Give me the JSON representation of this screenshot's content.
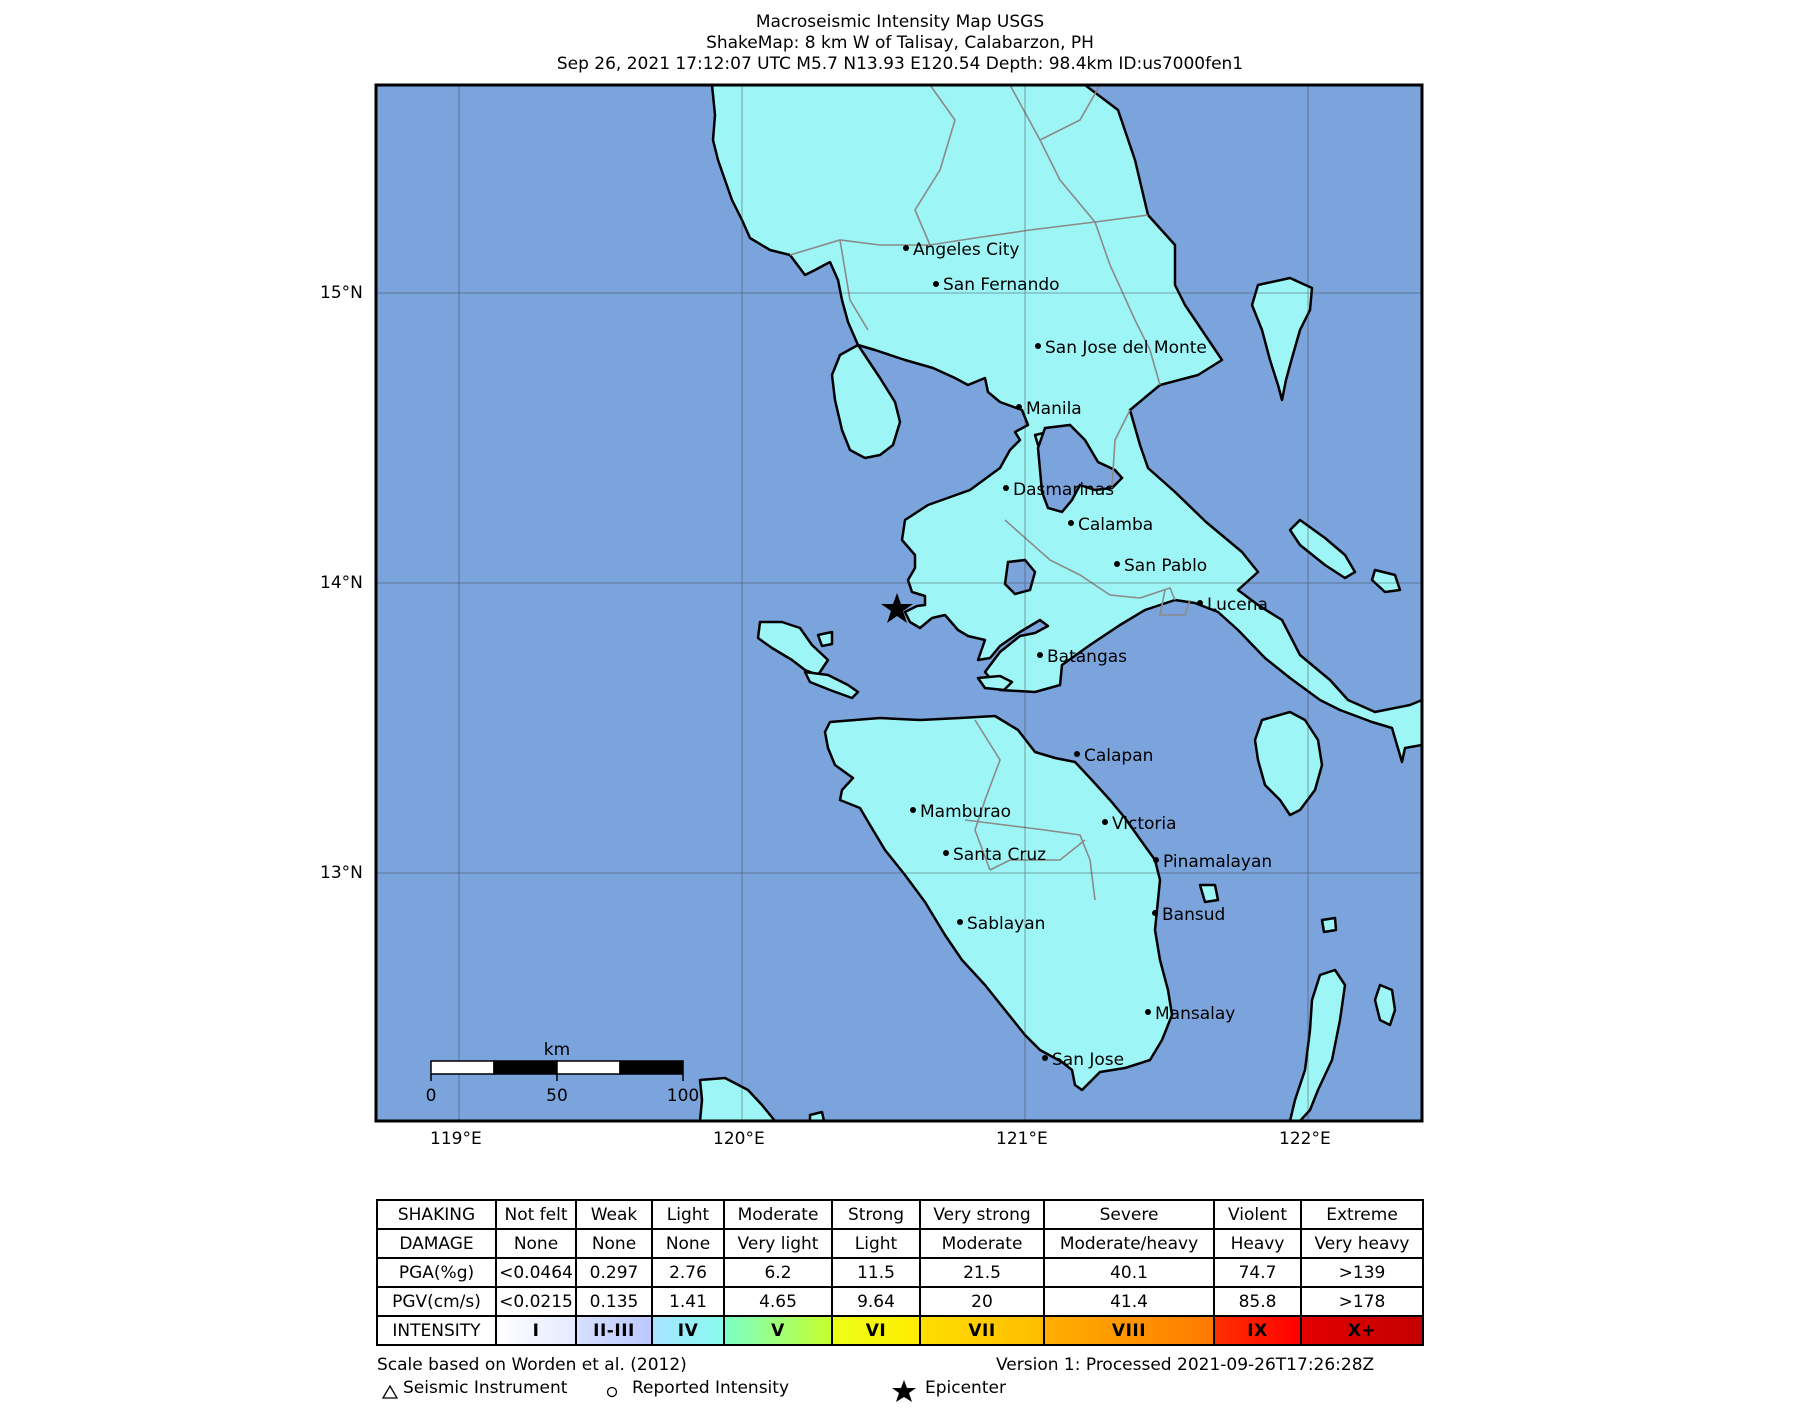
{
  "title": {
    "line1": "Macroseismic Intensity Map USGS",
    "line2": "ShakeMap: 8 km W of Talisay, Calabarzon, PH",
    "line3": "Sep 26, 2021 17:12:07 UTC M5.7 N13.93 E120.54 Depth: 98.4km ID:us7000fen1"
  },
  "map": {
    "lat_labels": [
      "15°N",
      "14°N",
      "13°N"
    ],
    "lon_labels": [
      "119°E",
      "120°E",
      "121°E",
      "122°E"
    ],
    "cities": [
      {
        "name": "Angeles City"
      },
      {
        "name": "San Fernando"
      },
      {
        "name": "San Jose del Monte"
      },
      {
        "name": "Manila"
      },
      {
        "name": "Dasmarinas"
      },
      {
        "name": "Calamba"
      },
      {
        "name": "San Pablo"
      },
      {
        "name": "Lucena"
      },
      {
        "name": "Batangas"
      },
      {
        "name": "Calapan"
      },
      {
        "name": "Mamburao"
      },
      {
        "name": "Victoria"
      },
      {
        "name": "Santa Cruz"
      },
      {
        "name": "Pinamalayan"
      },
      {
        "name": "Bansud"
      },
      {
        "name": "Sablayan"
      },
      {
        "name": "Mansalay"
      },
      {
        "name": "San Jose"
      }
    ],
    "scalebar": {
      "unit": "km",
      "ticks": [
        "0",
        "50",
        "100"
      ]
    },
    "colors": {
      "water": "#7ba3dc",
      "land": "#9ef5f5",
      "border": "#8a8a8a"
    }
  },
  "legend": {
    "row_headers": [
      "SHAKING",
      "DAMAGE",
      "PGA(%g)",
      "PGV(cm/s)",
      "INTENSITY"
    ],
    "columns": [
      {
        "shaking": "Not felt",
        "damage": "None",
        "pga": "<0.0464",
        "pgv": "<0.0215",
        "intensity": "I",
        "color": "#ffffff"
      },
      {
        "shaking": "Weak",
        "damage": "None",
        "pga": "0.297",
        "pgv": "0.135",
        "intensity": "II-III",
        "color": "#bfccff"
      },
      {
        "shaking": "Light",
        "damage": "None",
        "pga": "2.76",
        "pgv": "1.41",
        "intensity": "IV",
        "color": "#a0e6ff"
      },
      {
        "shaking": "Moderate",
        "damage": "Very light",
        "pga": "6.2",
        "pgv": "4.65",
        "intensity": "V",
        "color": "#80ffff"
      },
      {
        "shaking": "Strong",
        "damage": "Light",
        "pga": "11.5",
        "pgv": "9.64",
        "intensity": "VI",
        "color": "#ffff00"
      },
      {
        "shaking": "Very strong",
        "damage": "Moderate",
        "pga": "21.5",
        "pgv": "20",
        "intensity": "VII",
        "color": "#ffc800"
      },
      {
        "shaking": "Severe",
        "damage": "Moderate/heavy",
        "pga": "40.1",
        "pgv": "41.4",
        "intensity": "VIII",
        "color": "#ff9100"
      },
      {
        "shaking": "Violent",
        "damage": "Heavy",
        "pga": "74.7",
        "pgv": "85.8",
        "intensity": "IX",
        "color": "#ff0000"
      },
      {
        "shaking": "Extreme",
        "damage": "Very heavy",
        "pga": ">139",
        "pgv": ">178",
        "intensity": "X+",
        "color": "#c80000"
      }
    ]
  },
  "footer": {
    "scale_note": "Scale based on Worden et al. (2012)",
    "version": "Version 1: Processed 2021-09-26T17:26:28Z",
    "seismic_instrument": "Seismic Instrument",
    "reported_intensity": "Reported Intensity",
    "epicenter": "Epicenter"
  }
}
